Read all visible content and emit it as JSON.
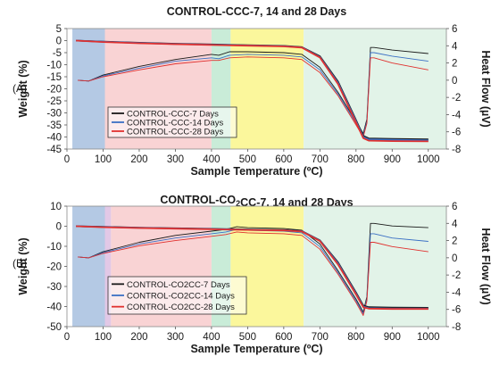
{
  "chart_data": [
    {
      "type": "line",
      "panel_label": "(A)",
      "title": "CONTROL-CCC-7, 14 and 28 Days",
      "title_parts": [
        {
          "text": "CONTROL-CCC-7, 14 and 28 Days",
          "sub": false
        }
      ],
      "xlabel": "Sample Temperature (ºC)",
      "ylabel_left": "Weight  (%)",
      "ylabel_right": "Heat Flow (µV)",
      "xlim": [
        0,
        1050
      ],
      "ylim_left": [
        -45,
        5
      ],
      "ylim_right": [
        -8,
        6
      ],
      "x_ticks": [
        0,
        100,
        200,
        300,
        400,
        500,
        600,
        700,
        800,
        900,
        1000
      ],
      "y_left_ticks": [
        -45,
        -40,
        -35,
        -30,
        -25,
        -20,
        -15,
        -10,
        -5,
        0,
        5
      ],
      "y_right_ticks": [
        -8,
        -6,
        -4,
        -2,
        0,
        2,
        4,
        6
      ],
      "regions": [
        {
          "from": 15,
          "to": 105,
          "color": "#b4c9e4"
        },
        {
          "from": 105,
          "to": 400,
          "color": "#f9d3d4"
        },
        {
          "from": 400,
          "to": 453,
          "color": "#c9ecd8"
        },
        {
          "from": 453,
          "to": 655,
          "color": "#fbf79c"
        },
        {
          "from": 655,
          "to": 1050,
          "color": "#e2f3e8"
        }
      ],
      "legend_position": "lower-middle",
      "series": [
        {
          "name": "CONTROL-CCC-7 Days",
          "color": "#1a1a1a",
          "weight": {
            "x": [
              25,
              100,
              200,
              300,
              400,
              500,
              600,
              650,
              700,
              750,
              800,
              820,
              835,
              900,
              1000
            ],
            "y": [
              0,
              -0.4,
              -0.9,
              -1.3,
              -1.6,
              -1.9,
              -2.2,
              -2.7,
              -6.5,
              -17,
              -33,
              -39.5,
              -40.6,
              -40.8,
              -41
            ]
          },
          "heat_flow": {
            "x": [
              30,
              60,
              100,
              200,
              300,
              400,
              420,
              450,
              500,
              600,
              650,
              700,
              750,
              800,
              820,
              830,
              840,
              850,
              900,
              1000
            ],
            "y": [
              0.0,
              -0.1,
              0.6,
              1.6,
              2.4,
              3.0,
              2.9,
              3.3,
              3.3,
              3.2,
              3.0,
              1.5,
              -1.4,
              -4.8,
              -6.2,
              -4.5,
              3.8,
              3.8,
              3.5,
              3.1
            ]
          }
        },
        {
          "name": "CONTROL-CCC-14 Days",
          "color": "#3a6fc4",
          "weight": {
            "x": [
              25,
              100,
              200,
              300,
              400,
              500,
              600,
              650,
              700,
              750,
              800,
              820,
              835,
              900,
              1000
            ],
            "y": [
              0,
              -0.5,
              -1.0,
              -1.4,
              -1.7,
              -2.0,
              -2.3,
              -2.8,
              -6.8,
              -17.5,
              -33.5,
              -40,
              -41,
              -41.2,
              -41.4
            ]
          },
          "heat_flow": {
            "x": [
              30,
              60,
              100,
              200,
              300,
              400,
              420,
              450,
              500,
              600,
              650,
              700,
              750,
              800,
              820,
              830,
              840,
              850,
              900,
              1000
            ],
            "y": [
              0.0,
              -0.1,
              0.5,
              1.4,
              2.2,
              2.6,
              2.5,
              2.9,
              3.0,
              2.9,
              2.7,
              1.2,
              -1.6,
              -5.0,
              -6.4,
              -4.8,
              3.2,
              3.2,
              2.8,
              2.2
            ]
          }
        },
        {
          "name": "CONTROL-CCC-28 Days",
          "color": "#e0312f",
          "weight": {
            "x": [
              25,
              100,
              200,
              300,
              400,
              500,
              600,
              650,
              700,
              750,
              800,
              820,
              835,
              900,
              1000
            ],
            "y": [
              0,
              -0.6,
              -1.1,
              -1.5,
              -1.8,
              -2.1,
              -2.4,
              -2.9,
              -7,
              -18,
              -34,
              -40.5,
              -41.5,
              -41.7,
              -41.8
            ]
          },
          "heat_flow": {
            "x": [
              30,
              60,
              100,
              200,
              300,
              400,
              420,
              450,
              500,
              600,
              650,
              700,
              750,
              800,
              820,
              830,
              840,
              850,
              900,
              1000
            ],
            "y": [
              0.0,
              -0.1,
              0.4,
              1.2,
              1.9,
              2.3,
              2.3,
              2.6,
              2.7,
              2.6,
              2.4,
              0.9,
              -1.8,
              -5.2,
              -6.6,
              -5.0,
              2.6,
              2.6,
              2.0,
              1.2
            ]
          }
        }
      ]
    },
    {
      "type": "line",
      "panel_label": "(B)",
      "title": "CONTROL-CO2CC-7, 14 and 28 Days",
      "title_parts": [
        {
          "text": "CONTROL-CO",
          "sub": false
        },
        {
          "text": "2",
          "sub": true
        },
        {
          "text": "CC-7, 14 and 28 Days",
          "sub": false
        }
      ],
      "xlabel": "Sample Temperature (ºC)",
      "ylabel_left": "Weight  (%)",
      "ylabel_right": "Heat Flow (µV)",
      "xlim": [
        0,
        1050
      ],
      "ylim_left": [
        -50,
        10
      ],
      "ylim_right": [
        -8,
        6
      ],
      "x_ticks": [
        0,
        100,
        200,
        300,
        400,
        500,
        600,
        700,
        800,
        900,
        1000
      ],
      "y_left_ticks": [
        -50,
        -40,
        -30,
        -20,
        -10,
        0,
        10
      ],
      "y_right_ticks": [
        -8,
        -6,
        -4,
        -2,
        0,
        2,
        4,
        6
      ],
      "regions": [
        {
          "from": 15,
          "to": 105,
          "color": "#b4c9e4"
        },
        {
          "from": 105,
          "to": 122,
          "color": "#e2c8e6"
        },
        {
          "from": 122,
          "to": 400,
          "color": "#f9d3d4"
        },
        {
          "from": 400,
          "to": 453,
          "color": "#c9ecd8"
        },
        {
          "from": 453,
          "to": 655,
          "color": "#fbf79c"
        },
        {
          "from": 655,
          "to": 1050,
          "color": "#e2f3e8"
        }
      ],
      "legend_position": "lower-middle",
      "series": [
        {
          "name": "CONTROL-CO2CC-7 Days",
          "color": "#1a1a1a",
          "weight": {
            "x": [
              25,
              100,
              200,
              300,
              400,
              500,
              600,
              650,
              700,
              750,
              800,
              820,
              835,
              900,
              1000
            ],
            "y": [
              0,
              -0.3,
              -0.7,
              -1.0,
              -1.3,
              -1.6,
              -1.9,
              -2.4,
              -7,
              -18,
              -33,
              -39.5,
              -40.3,
              -40.5,
              -40.6
            ]
          },
          "heat_flow": {
            "x": [
              30,
              60,
              100,
              200,
              300,
              400,
              440,
              470,
              500,
              600,
              650,
              700,
              750,
              800,
              820,
              830,
              840,
              850,
              900,
              1000
            ],
            "y": [
              0.1,
              0.0,
              0.7,
              1.8,
              2.6,
              3.1,
              3.3,
              3.6,
              3.5,
              3.4,
              3.2,
              1.6,
              -1.5,
              -4.8,
              -6.3,
              -4.5,
              4.0,
              4.0,
              3.7,
              3.5
            ]
          }
        },
        {
          "name": "CONTROL-CO2CC-14 Days",
          "color": "#3a6fc4",
          "weight": {
            "x": [
              25,
              100,
              200,
              300,
              400,
              500,
              600,
              650,
              700,
              750,
              800,
              820,
              835,
              900,
              1000
            ],
            "y": [
              0,
              -0.4,
              -0.8,
              -1.1,
              -1.4,
              -1.7,
              -2.0,
              -2.5,
              -7.2,
              -18.5,
              -33.5,
              -40,
              -40.8,
              -41,
              -41
            ]
          },
          "heat_flow": {
            "x": [
              30,
              60,
              100,
              200,
              300,
              400,
              440,
              470,
              500,
              600,
              650,
              700,
              750,
              800,
              820,
              830,
              840,
              850,
              900,
              1000
            ],
            "y": [
              0.1,
              0.0,
              0.6,
              1.6,
              2.3,
              2.8,
              3.0,
              3.3,
              3.2,
              3.1,
              2.9,
              1.3,
              -1.7,
              -5.0,
              -6.5,
              -4.8,
              2.8,
              2.8,
              2.3,
              1.9
            ]
          }
        },
        {
          "name": "CONTROL-CO2CC-28 Days",
          "color": "#e0312f",
          "weight": {
            "x": [
              25,
              100,
              200,
              300,
              400,
              500,
              600,
              650,
              700,
              750,
              800,
              820,
              835,
              900,
              1000
            ],
            "y": [
              0,
              -0.5,
              -0.9,
              -1.2,
              -1.5,
              -1.8,
              -2.1,
              -2.6,
              -7.4,
              -19,
              -34,
              -40.3,
              -41,
              -41.2,
              -41.2
            ]
          },
          "heat_flow": {
            "x": [
              30,
              60,
              100,
              200,
              300,
              400,
              440,
              470,
              500,
              600,
              650,
              700,
              750,
              800,
              820,
              830,
              840,
              850,
              900,
              1000
            ],
            "y": [
              0.1,
              0.0,
              0.5,
              1.4,
              2.0,
              2.5,
              2.7,
              3.0,
              2.9,
              2.8,
              2.6,
              1.0,
              -1.9,
              -5.2,
              -6.7,
              -5.0,
              1.8,
              1.8,
              1.3,
              0.7
            ]
          }
        }
      ]
    }
  ]
}
